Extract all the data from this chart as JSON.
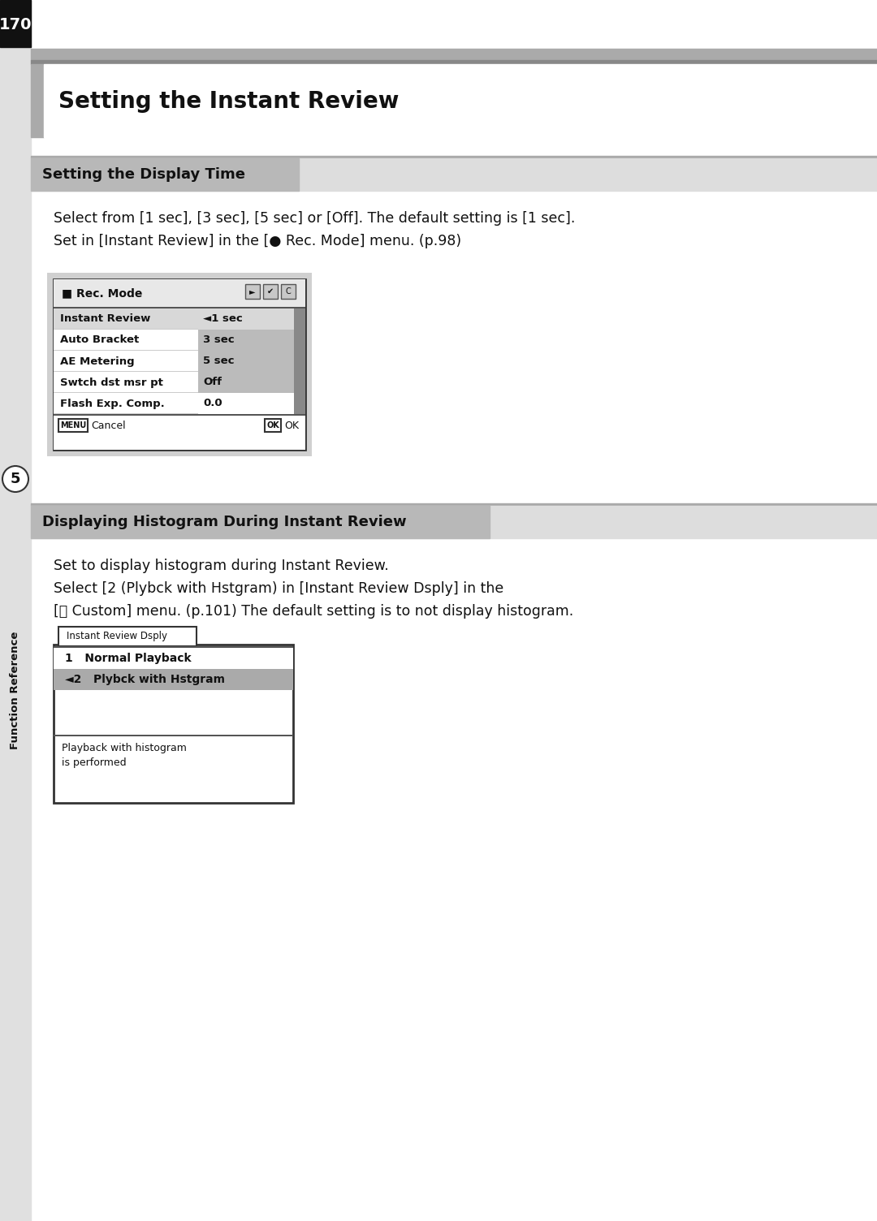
{
  "page_number": "170",
  "page_bg": "#ffffff",
  "sidebar_bg": "#1a1a1a",
  "sidebar_text": "#ffffff",
  "sidebar_label": "Function Reference",
  "sidebar_number": "5",
  "main_title": "Setting the Instant Review",
  "main_title_fontsize": 20,
  "section1_title": "Setting the Display Time",
  "section2_title": "Displaying Histogram During Instant Review",
  "section_title_fontsize": 13,
  "body_fontsize": 12.5,
  "para1_line1": "Select from [1 sec], [3 sec], [5 sec] or [Off]. The default setting is [1 sec].",
  "para1_line2": "Set in [Instant Review] in the [● Rec. Mode] menu. (p.98)",
  "para2_line1": "Set to display histogram during Instant Review.",
  "para2_line2": "Select [2 (Plybck with Hstgram) in [Instant Review Dsply] in the",
  "para2_line3": "[Ｃ Custom] menu. (p.101) The default setting is to not display histogram.",
  "menu1_rows": [
    {
      "label": "Instant Review",
      "value": "◄1 sec",
      "highlight": true
    },
    {
      "label": "Auto Bracket",
      "value": "3 sec",
      "highlight": false
    },
    {
      "label": "AE Metering",
      "value": "5 sec",
      "highlight": false
    },
    {
      "label": "Swtch dst msr pt",
      "value": "Off",
      "highlight": false
    },
    {
      "label": "Flash Exp. Comp.",
      "value": "0.0",
      "highlight": false
    }
  ],
  "menu2_tab": "Instant Review Dsply",
  "menu2_rows": [
    {
      "label": "1   Normal Playback",
      "highlight": false
    },
    {
      "label": "◄2   Plybck with Hstgram",
      "highlight": true
    }
  ],
  "menu2_footer": "Playback with histogram\nis performed"
}
